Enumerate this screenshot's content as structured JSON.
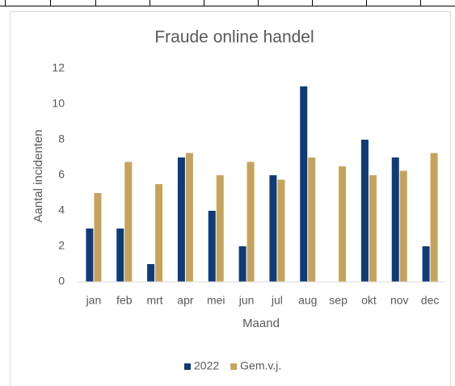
{
  "chart_data": {
    "type": "bar",
    "title": "Fraude online handel",
    "x_label": "Maand",
    "y_label": "Aantal incidenten",
    "categories": [
      "jan",
      "feb",
      "mrt",
      "apr",
      "mei",
      "jun",
      "jul",
      "aug",
      "sep",
      "okt",
      "nov",
      "dec"
    ],
    "series": [
      {
        "name": "2022",
        "color": "#0f3b78",
        "values": [
          3,
          3,
          1,
          7,
          4,
          2,
          6,
          11,
          null,
          8,
          7,
          2
        ]
      },
      {
        "name": "Gem.v.j.",
        "color": "#c6a35c",
        "values": [
          5,
          6.75,
          5.5,
          7.25,
          6,
          6.75,
          5.75,
          7,
          6.5,
          6,
          6.25,
          7.25
        ]
      }
    ],
    "ylim": [
      0,
      12
    ],
    "yticks": [
      0,
      2,
      4,
      6,
      8,
      10,
      12
    ],
    "grid": false,
    "legend": "bottom"
  }
}
